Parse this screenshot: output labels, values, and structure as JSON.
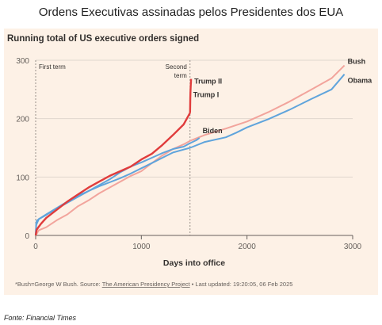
{
  "page": {
    "title": "Ordens Executivas assinadas pelos Presidentes dos EUA",
    "source": "Fonte: Financial Times"
  },
  "chart_data": {
    "type": "line",
    "title": "Running total of US executive orders signed",
    "xlabel": "Days into office",
    "ylabel": "",
    "xlim": [
      0,
      3000
    ],
    "ylim": [
      0,
      300
    ],
    "xticks": [
      "0",
      "1000",
      "2000",
      "3000"
    ],
    "yticks": [
      "0",
      "100",
      "200",
      "300"
    ],
    "grid": true,
    "legend": "direct labels at line ends",
    "annotations": [
      {
        "label": "First term",
        "x": 0
      },
      {
        "label": "Second term",
        "x": 1461
      }
    ],
    "footnote": {
      "prefix": "*Bush=George W Bush. Source: ",
      "link": "The American Presidency Project",
      "suffix": " • Last updated: 19:20:05, 06 Feb 2025"
    },
    "series": [
      {
        "name": "Bush",
        "color": "#f2a49c",
        "points": [
          [
            0,
            0
          ],
          [
            30,
            9
          ],
          [
            100,
            14
          ],
          [
            200,
            26
          ],
          [
            300,
            36
          ],
          [
            400,
            50
          ],
          [
            500,
            60
          ],
          [
            600,
            72
          ],
          [
            700,
            82
          ],
          [
            800,
            92
          ],
          [
            900,
            102
          ],
          [
            1000,
            110
          ],
          [
            1100,
            124
          ],
          [
            1200,
            137
          ],
          [
            1300,
            148
          ],
          [
            1400,
            156
          ],
          [
            1461,
            162
          ],
          [
            1600,
            172
          ],
          [
            1800,
            183
          ],
          [
            2000,
            195
          ],
          [
            2200,
            211
          ],
          [
            2400,
            229
          ],
          [
            2600,
            249
          ],
          [
            2800,
            269
          ],
          [
            2922,
            291
          ]
        ]
      },
      {
        "name": "Obama",
        "color": "#5fa4dc",
        "points": [
          [
            0,
            0
          ],
          [
            5,
            18
          ],
          [
            30,
            28
          ],
          [
            100,
            36
          ],
          [
            200,
            47
          ],
          [
            300,
            58
          ],
          [
            400,
            68
          ],
          [
            500,
            76
          ],
          [
            600,
            84
          ],
          [
            700,
            91
          ],
          [
            800,
            98
          ],
          [
            900,
            106
          ],
          [
            1000,
            115
          ],
          [
            1100,
            124
          ],
          [
            1200,
            133
          ],
          [
            1300,
            142
          ],
          [
            1400,
            147
          ],
          [
            1461,
            150
          ],
          [
            1600,
            160
          ],
          [
            1800,
            168
          ],
          [
            1900,
            176
          ],
          [
            2000,
            185
          ],
          [
            2200,
            199
          ],
          [
            2400,
            215
          ],
          [
            2600,
            233
          ],
          [
            2800,
            250
          ],
          [
            2922,
            276
          ]
        ]
      },
      {
        "name": "Trump I",
        "color": "#e03c3c",
        "points": [
          [
            0,
            0
          ],
          [
            10,
            10
          ],
          [
            50,
            20
          ],
          [
            100,
            30
          ],
          [
            200,
            44
          ],
          [
            300,
            58
          ],
          [
            400,
            70
          ],
          [
            500,
            82
          ],
          [
            600,
            92
          ],
          [
            700,
            102
          ],
          [
            800,
            110
          ],
          [
            900,
            118
          ],
          [
            1000,
            130
          ],
          [
            1100,
            140
          ],
          [
            1200,
            155
          ],
          [
            1300,
            172
          ],
          [
            1400,
            190
          ],
          [
            1461,
            210
          ]
        ]
      },
      {
        "name": "Trump II",
        "color": "#e03c3c",
        "points": [
          [
            1461,
            210
          ],
          [
            1463,
            235
          ],
          [
            1465,
            245
          ],
          [
            1467,
            255
          ],
          [
            1469,
            262
          ],
          [
            1471,
            268
          ]
        ]
      },
      {
        "name": "Biden",
        "color": "#5fa4dc",
        "points": [
          [
            0,
            0
          ],
          [
            5,
            20
          ],
          [
            10,
            25
          ],
          [
            30,
            28
          ],
          [
            100,
            35
          ],
          [
            200,
            46
          ],
          [
            300,
            56
          ],
          [
            400,
            66
          ],
          [
            500,
            76
          ],
          [
            600,
            86
          ],
          [
            700,
            96
          ],
          [
            800,
            108
          ],
          [
            900,
            118
          ],
          [
            1000,
            125
          ],
          [
            1100,
            133
          ],
          [
            1200,
            141
          ],
          [
            1300,
            148
          ],
          [
            1400,
            152
          ],
          [
            1461,
            158
          ],
          [
            1520,
            163
          ],
          [
            1550,
            167
          ]
        ]
      }
    ]
  }
}
